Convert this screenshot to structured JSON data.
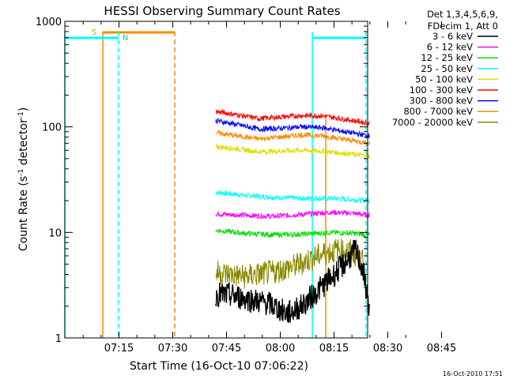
{
  "chart_data": {
    "type": "line",
    "title": "HESSI Observing Summary Count Rates",
    "xlabel": "Start Time (16-Oct-10 07:06:22)",
    "ylabel_main": "Count Rate (s",
    "ylabel_sup1": "-1",
    "ylabel_mid": " detector",
    "ylabel_sup2": "-1",
    "ylabel_end": ")",
    "y_scale": "log",
    "ylim": [
      1,
      1000
    ],
    "y_ticks": [
      {
        "value": 1,
        "label": "1"
      },
      {
        "value": 10,
        "label": "10"
      },
      {
        "value": 100,
        "label": "100"
      },
      {
        "value": 1000,
        "label": "1000"
      }
    ],
    "x_range_minutes": [
      0,
      98
    ],
    "x_ticks": [
      {
        "minute": 15,
        "label": "07:15"
      },
      {
        "minute": 30,
        "label": "07:30"
      },
      {
        "minute": 45,
        "label": "07:45"
      },
      {
        "minute": 60,
        "label": "08:00"
      },
      {
        "minute": 75,
        "label": "08:15"
      },
      {
        "minute": 90,
        "label": "08:30"
      },
      {
        "minute": 105,
        "label": "08:45"
      }
    ],
    "legend_header": [
      "Det 1,3,4,5,6,9,",
      "FDecim 1, Att 0"
    ],
    "legend_position": "right",
    "series": [
      {
        "name": "3 - 6 keV",
        "color": "#000000",
        "values": [
          [
            42,
            2.6
          ],
          [
            47,
            2.5
          ],
          [
            52,
            2.3
          ],
          [
            57,
            2.1
          ],
          [
            62,
            1.7
          ],
          [
            66,
            2.0
          ],
          [
            70,
            2.7
          ],
          [
            73,
            3.4
          ],
          [
            76,
            4.3
          ],
          [
            79,
            5.6
          ],
          [
            81,
            6.8
          ],
          [
            83,
            4.5
          ],
          [
            85,
            1.8
          ]
        ]
      },
      {
        "name": "6 - 12 keV",
        "color": "#ff00ff",
        "values": [
          [
            42,
            15
          ],
          [
            50,
            14.5
          ],
          [
            58,
            14.2
          ],
          [
            66,
            14.8
          ],
          [
            74,
            15.5
          ],
          [
            80,
            15.2
          ],
          [
            85,
            14.5
          ]
        ]
      },
      {
        "name": "12 - 25 keV",
        "color": "#00dd00",
        "values": [
          [
            42,
            10.5
          ],
          [
            50,
            9.8
          ],
          [
            58,
            9.5
          ],
          [
            66,
            9.6
          ],
          [
            74,
            10.0
          ],
          [
            80,
            9.8
          ],
          [
            85,
            9.5
          ]
        ]
      },
      {
        "name": "25 - 50 keV",
        "color": "#00ffff",
        "values": [
          [
            42,
            24
          ],
          [
            50,
            22.5
          ],
          [
            58,
            21.5
          ],
          [
            66,
            21.0
          ],
          [
            74,
            21.0
          ],
          [
            80,
            20.5
          ],
          [
            85,
            20.0
          ]
        ]
      },
      {
        "name": "50 - 100 keV",
        "color": "#dddd00",
        "values": [
          [
            42,
            65
          ],
          [
            48,
            62
          ],
          [
            54,
            58
          ],
          [
            60,
            59
          ],
          [
            66,
            60
          ],
          [
            72,
            59
          ],
          [
            78,
            56
          ],
          [
            85,
            53
          ]
        ]
      },
      {
        "name": "100 - 300 keV",
        "color": "#ff0000",
        "values": [
          [
            42,
            140
          ],
          [
            48,
            130
          ],
          [
            54,
            120
          ],
          [
            60,
            124
          ],
          [
            66,
            128
          ],
          [
            72,
            127
          ],
          [
            78,
            118
          ],
          [
            85,
            108
          ]
        ]
      },
      {
        "name": "300 - 800 keV",
        "color": "#0000ff",
        "values": [
          [
            42,
            115
          ],
          [
            48,
            105
          ],
          [
            54,
            95
          ],
          [
            60,
            97
          ],
          [
            66,
            100
          ],
          [
            72,
            98
          ],
          [
            78,
            90
          ],
          [
            85,
            82
          ]
        ]
      },
      {
        "name": "800 - 7000 keV",
        "color": "#ff8800",
        "values": [
          [
            42,
            88
          ],
          [
            48,
            82
          ],
          [
            54,
            77
          ],
          [
            60,
            80
          ],
          [
            66,
            84
          ],
          [
            72,
            82
          ],
          [
            78,
            76
          ],
          [
            85,
            70
          ]
        ]
      },
      {
        "name": "7000 - 20000 keV",
        "color": "#888800",
        "values": [
          [
            42,
            4.2
          ],
          [
            50,
            3.8
          ],
          [
            58,
            4.2
          ],
          [
            64,
            4.8
          ],
          [
            68,
            5.5
          ],
          [
            72,
            6.3
          ],
          [
            76,
            6.8
          ],
          [
            80,
            6.6
          ],
          [
            83,
            5.2
          ],
          [
            84,
            3.0
          ]
        ]
      }
    ],
    "annotations": [
      {
        "label": "S",
        "color": "#ff8800"
      },
      {
        "label": "N",
        "color": "#00ffff"
      }
    ]
  },
  "footer_timestamp": "16-Oct-2010 17:51"
}
